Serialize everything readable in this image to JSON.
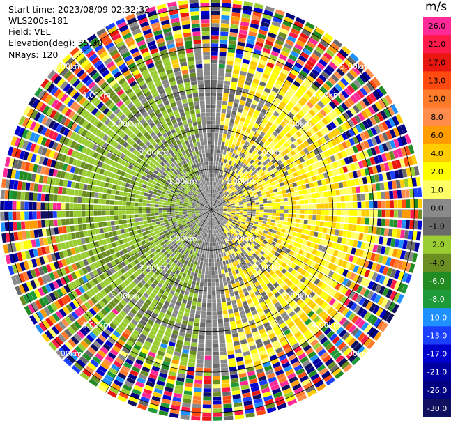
{
  "chart_data": {
    "type": "ppi",
    "start_time_label": "Start time: 2023/08/09 02:32:32",
    "instrument_label": "WLS200s-181",
    "field_label": "Field: VEL",
    "elevation_label": "Elevation(deg): 35.30",
    "nrays_label": "NRays: 120",
    "nrays": 120,
    "max_range_km": 5.2,
    "range_gates": 52,
    "range_rings_km": [
      1,
      2,
      3,
      4,
      5
    ],
    "range_ring_labels": [
      "1.00km",
      "2.00km",
      "3.00km",
      "4.00km",
      "5.00km"
    ],
    "colorbar_unit": "m/s",
    "colorbar_ticks": [
      "26.0",
      "21.0",
      "17.0",
      "13.0",
      "10.0",
      "8.0",
      "6.0",
      "4.0",
      "2.0",
      "1.0",
      "0.0",
      "-1.0",
      "-2.0",
      "-4.0",
      "-6.0",
      "-8.0",
      "-10.0",
      "-13.0",
      "-17.0",
      "-21.0",
      "-26.0",
      "-30.0"
    ],
    "colorbar_colors": [
      "#ff2a98",
      "#ff1a4a",
      "#e8170f",
      "#ff4a10",
      "#ff7a2a",
      "#ff8c4a",
      "#ff9c00",
      "#ffcc00",
      "#ffff00",
      "#ffff66",
      "#8a8a8a",
      "#6a6a6a",
      "#9acd32",
      "#6b8e23",
      "#228b22",
      "#1f9a3a",
      "#1e90ff",
      "#1a3fff",
      "#0000cd",
      "#0000a0",
      "#000080",
      "#101060"
    ],
    "pattern_description_regions": {
      "approaching_sector_west": "greens",
      "receding_sector_east": "yellows",
      "near_zero_center": "greys",
      "noise_far_range": "mixed"
    }
  }
}
